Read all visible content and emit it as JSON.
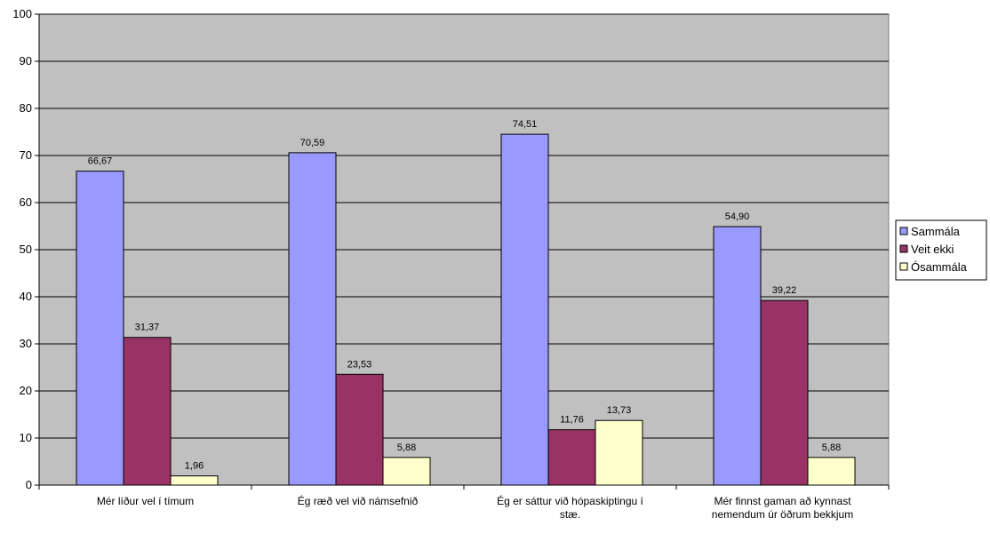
{
  "chart_data": {
    "type": "bar",
    "categories": [
      [
        "Mér líður vel í tímum"
      ],
      [
        "Ég ræð vel við námsefnið"
      ],
      [
        "Ég er sáttur við hópaskiptingu í",
        "stæ."
      ],
      [
        "Mér finnst gaman að kynnast",
        "nemendum úr öðrum bekkjum"
      ]
    ],
    "series": [
      {
        "name": "Sammála",
        "color": "#9999FF",
        "values": [
          66.67,
          70.59,
          74.51,
          54.9
        ],
        "labels": [
          "66,67",
          "70,59",
          "74,51",
          "54,90"
        ]
      },
      {
        "name": "Veit ekki",
        "color": "#993366",
        "values": [
          31.37,
          23.53,
          11.76,
          39.22
        ],
        "labels": [
          "31,37",
          "23,53",
          "11,76",
          "39,22"
        ]
      },
      {
        "name": "Ósammála",
        "color": "#FFFFCC",
        "values": [
          1.96,
          5.88,
          13.73,
          5.88
        ],
        "labels": [
          "1,96",
          "5,88",
          "13,73",
          "5,88"
        ]
      }
    ],
    "ylim": [
      0,
      100
    ],
    "yticks": [
      0,
      10,
      20,
      30,
      40,
      50,
      60,
      70,
      80,
      90,
      100
    ],
    "plot_background": "#C0C0C0",
    "grid": true,
    "legend_position": "right"
  }
}
